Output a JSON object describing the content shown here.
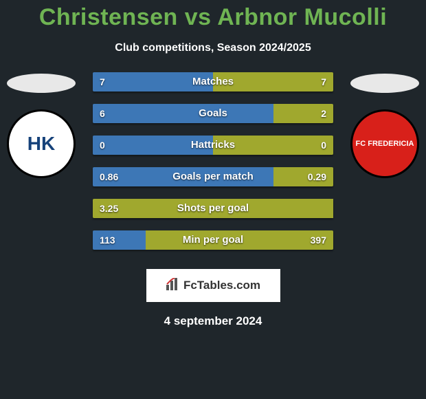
{
  "title_color": "#6fb453",
  "title_left": "Christensen",
  "title_vs": "vs",
  "title_right": "Arbnor Mucolli",
  "subtitle": "Club competitions, Season 2024/2025",
  "colors": {
    "left": "#3d77b6",
    "right": "#a0a82e",
    "full_bar": "#a0a82e"
  },
  "bars": [
    {
      "label": "Matches",
      "left_val": "7",
      "right_val": "7",
      "left_pct": 50,
      "right_pct": 50
    },
    {
      "label": "Goals",
      "left_val": "6",
      "right_val": "2",
      "left_pct": 75,
      "right_pct": 25
    },
    {
      "label": "Hattricks",
      "left_val": "0",
      "right_val": "0",
      "left_pct": 50,
      "right_pct": 50
    },
    {
      "label": "Goals per match",
      "left_val": "0.86",
      "right_val": "0.29",
      "left_pct": 75,
      "right_pct": 25
    },
    {
      "label": "Shots per goal",
      "left_val": "3.25",
      "right_val": "",
      "left_pct": 100,
      "right_pct": 0
    },
    {
      "label": "Min per goal",
      "left_val": "113",
      "right_val": "397",
      "left_pct": 22,
      "right_pct": 78
    }
  ],
  "crest_left": {
    "bg": "#ffffff",
    "text": "HK",
    "text_color": "#16427a",
    "accent": "#d22"
  },
  "crest_right": {
    "bg": "#d8201a",
    "text": "FC FREDERICIA",
    "text_color": "#ffffff"
  },
  "brand": "FcTables.com",
  "date": "4 september 2024"
}
